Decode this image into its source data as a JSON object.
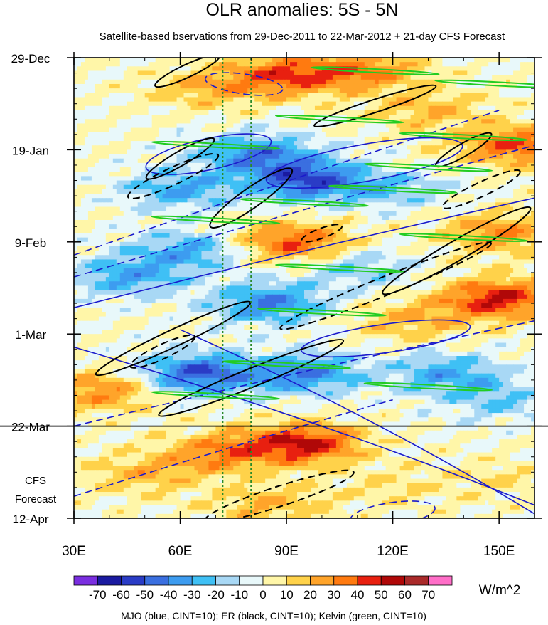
{
  "chart_data": {
    "type": "heatmap",
    "title": "OLR anomalies: 5S - 5N",
    "subtitle": "Satellite-based bservations from 29-Dec-2011 to 22-Mar-2012 + 21-day CFS Forecast",
    "x_axis": {
      "range": [
        30,
        160
      ],
      "ticks": [
        30,
        60,
        90,
        120,
        150
      ],
      "tick_labels": [
        "30E",
        "60E",
        "90E",
        "120E",
        "150E"
      ]
    },
    "y_axis": {
      "range_days": [
        0,
        105
      ],
      "reversed": true,
      "tick_days": [
        0,
        21,
        42,
        63,
        84,
        105
      ],
      "tick_labels": [
        "29-Dec",
        "19-Jan",
        "9-Feb",
        "1-Mar",
        "22-Mar",
        "12-Apr"
      ]
    },
    "forecast_start_day": 84,
    "forecast_annotation": [
      "CFS",
      "Forecast"
    ],
    "reference_longitudes": [
      72,
      80
    ],
    "colorbar": {
      "levels": [
        -70,
        -60,
        -50,
        -40,
        -30,
        -20,
        -10,
        0,
        10,
        20,
        30,
        40,
        50,
        60,
        70
      ],
      "level_labels": [
        "-70",
        "-60",
        "-50",
        "-40",
        "-30",
        "-20",
        "-10",
        "0",
        "10",
        "20",
        "30",
        "40",
        "50",
        "60",
        "70"
      ],
      "colors": [
        "#7a2ee0",
        "#1a1aa0",
        "#2a3cc6",
        "#3a6fe0",
        "#3d9cf0",
        "#3fc0f5",
        "#a8d8f5",
        "#e8f8fa",
        "#fff6a8",
        "#ffd24a",
        "#ffa42a",
        "#ff7a10",
        "#e82010",
        "#b00808",
        "#aa2a2a",
        "#ff6ec8"
      ],
      "units": "W/m^2"
    },
    "legend_caption": "MJO (blue, CINT=10); ER (black, CINT=10); Kelvin (green, CINT=10)",
    "series": [
      {
        "name": "MJO",
        "color": "#1a1acc"
      },
      {
        "name": "ER",
        "color": "#000000"
      },
      {
        "name": "Kelvin",
        "color": "#22cc22"
      }
    ],
    "anomaly_centers": [
      {
        "lon": 90,
        "day": 4,
        "value": 40
      },
      {
        "lon": 112,
        "day": 3,
        "value": 30
      },
      {
        "lon": 68,
        "day": 7,
        "value": 20
      },
      {
        "lon": 130,
        "day": 12,
        "value": 20
      },
      {
        "lon": 155,
        "day": 20,
        "value": 40
      },
      {
        "lon": 82,
        "day": 22,
        "value": -40
      },
      {
        "lon": 96,
        "day": 28,
        "value": -50
      },
      {
        "lon": 60,
        "day": 30,
        "value": -30
      },
      {
        "lon": 120,
        "day": 30,
        "value": -20
      },
      {
        "lon": 92,
        "day": 42,
        "value": 40
      },
      {
        "lon": 62,
        "day": 44,
        "value": -30
      },
      {
        "lon": 150,
        "day": 40,
        "value": 30
      },
      {
        "lon": 110,
        "day": 48,
        "value": -20
      },
      {
        "lon": 150,
        "day": 55,
        "value": 50
      },
      {
        "lon": 85,
        "day": 56,
        "value": -40
      },
      {
        "lon": 45,
        "day": 50,
        "value": -30
      },
      {
        "lon": 125,
        "day": 60,
        "value": 20
      },
      {
        "lon": 65,
        "day": 72,
        "value": -50
      },
      {
        "lon": 95,
        "day": 72,
        "value": -40
      },
      {
        "lon": 135,
        "day": 72,
        "value": -30
      },
      {
        "lon": 38,
        "day": 76,
        "value": 30
      },
      {
        "lon": 150,
        "day": 78,
        "value": -20
      },
      {
        "lon": 95,
        "day": 88,
        "value": 50
      },
      {
        "lon": 72,
        "day": 90,
        "value": 30
      },
      {
        "lon": 50,
        "day": 95,
        "value": 20
      },
      {
        "lon": 85,
        "day": 102,
        "value": 20
      },
      {
        "lon": 120,
        "day": 98,
        "value": 10
      },
      {
        "lon": 150,
        "day": 96,
        "value": 10
      }
    ]
  }
}
